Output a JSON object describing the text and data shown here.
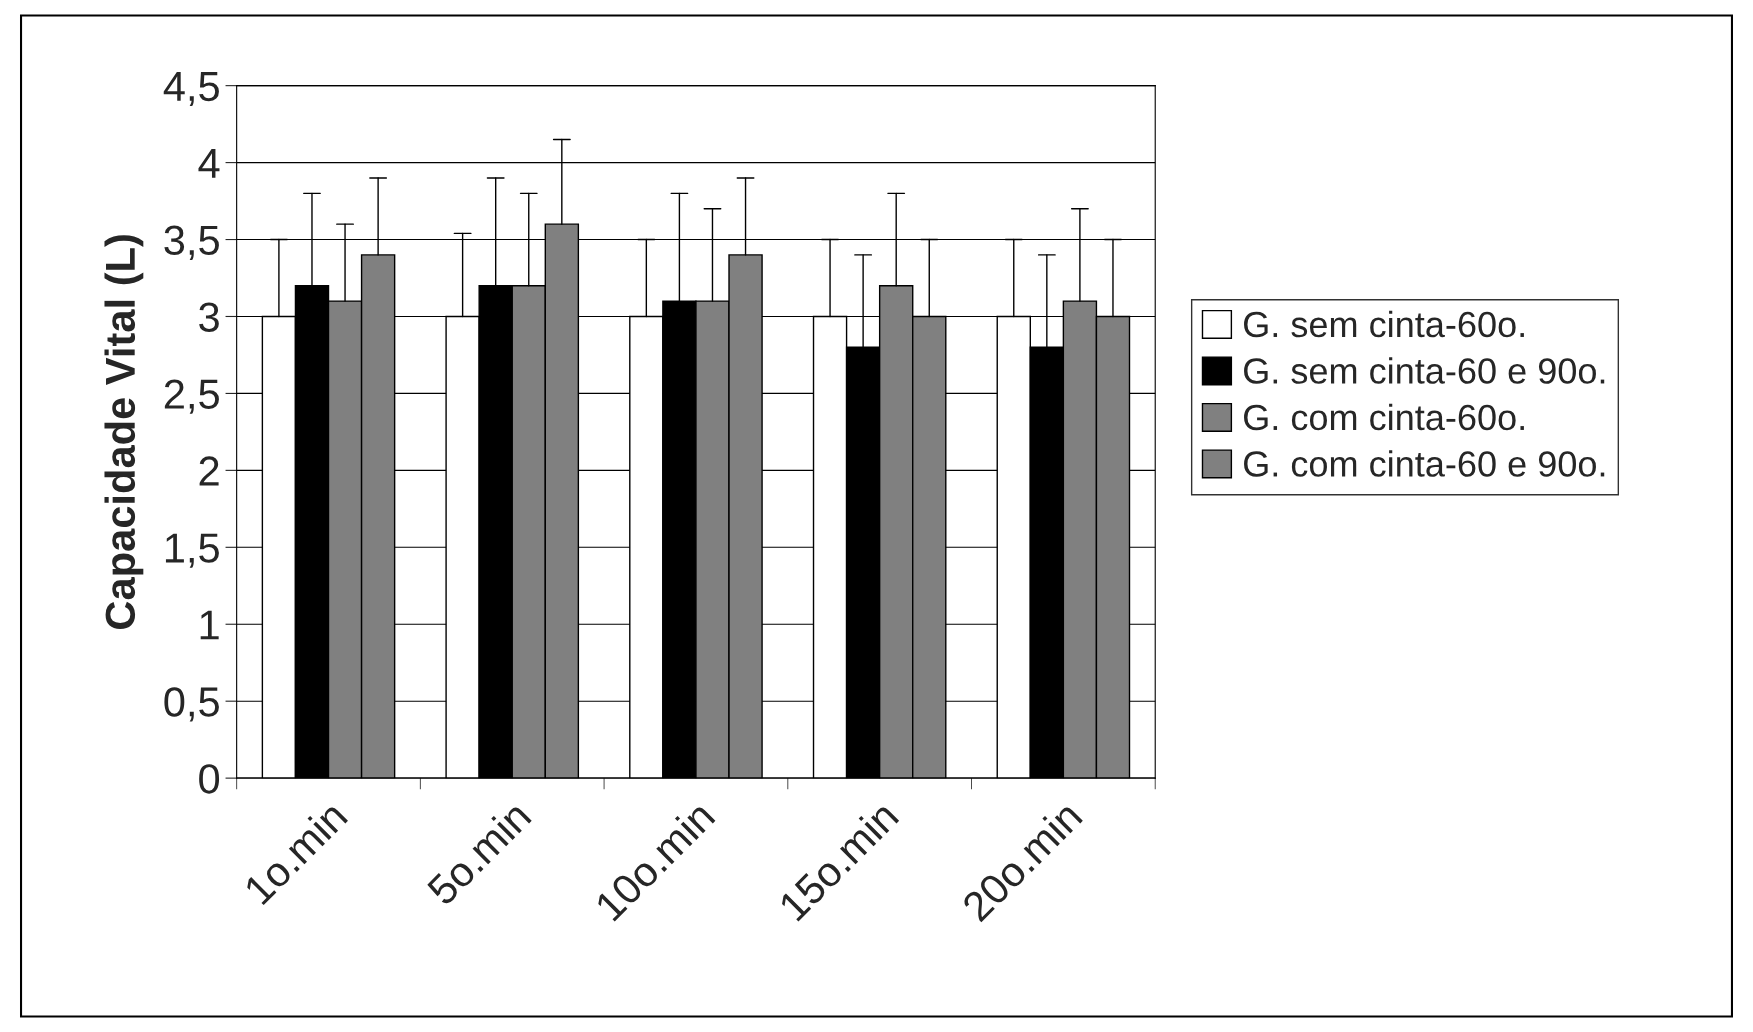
{
  "chart_data": {
    "type": "bar",
    "ylabel": "Capacidade Vital (L)",
    "categories": [
      "1o.min",
      "5o.min",
      "10o.min",
      "15o.min",
      "20o.min"
    ],
    "series": [
      {
        "name": "G. sem cinta-60o.",
        "color": "#ffffff",
        "values": [
          3,
          3,
          3,
          3,
          3
        ],
        "errors": [
          [
            3,
            3.5
          ],
          [
            3,
            3.54
          ],
          [
            3,
            3.5
          ],
          [
            3,
            3.5
          ],
          [
            3,
            3.5
          ]
        ]
      },
      {
        "name": "G. sem cinta-60 e 90o.",
        "color": "#000000",
        "values": [
          3.2,
          3.2,
          3.1,
          2.8,
          2.8
        ],
        "errors": [
          [
            3.2,
            3.8
          ],
          [
            3.2,
            3.9
          ],
          [
            3.1,
            3.8
          ],
          [
            2.8,
            3.4
          ],
          [
            2.8,
            3.4
          ]
        ]
      },
      {
        "name": "G. com cinta-60o.",
        "color": "#808080",
        "values": [
          3.1,
          3.2,
          3.1,
          3.2,
          3.1
        ],
        "errors": [
          [
            3.1,
            3.6
          ],
          [
            3.2,
            3.8
          ],
          [
            3.1,
            3.7
          ],
          [
            3.2,
            3.8
          ],
          [
            3.1,
            3.7
          ]
        ]
      },
      {
        "name": "G. com cinta-60 e 90o.",
        "color": "#808080",
        "values": [
          3.4,
          3.6,
          3.4,
          3.0,
          3.0
        ],
        "errors": [
          [
            3.4,
            3.9
          ],
          [
            3.6,
            4.15
          ],
          [
            3.4,
            3.9
          ],
          [
            3.0,
            3.5
          ],
          [
            3.0,
            3.5
          ]
        ]
      }
    ],
    "ylim": [
      0,
      4.5
    ],
    "yticks": [
      0,
      {
        "value": 0.5,
        "label": "0,5"
      },
      1,
      {
        "value": 1.5,
        "label": "1,5"
      },
      2,
      {
        "value": 2.5,
        "label": "2,5"
      },
      3,
      {
        "value": 3.5,
        "label": "3,5"
      },
      4,
      {
        "value": 4.5,
        "label": "4,5"
      }
    ],
    "grid": "y",
    "legend": "right"
  }
}
